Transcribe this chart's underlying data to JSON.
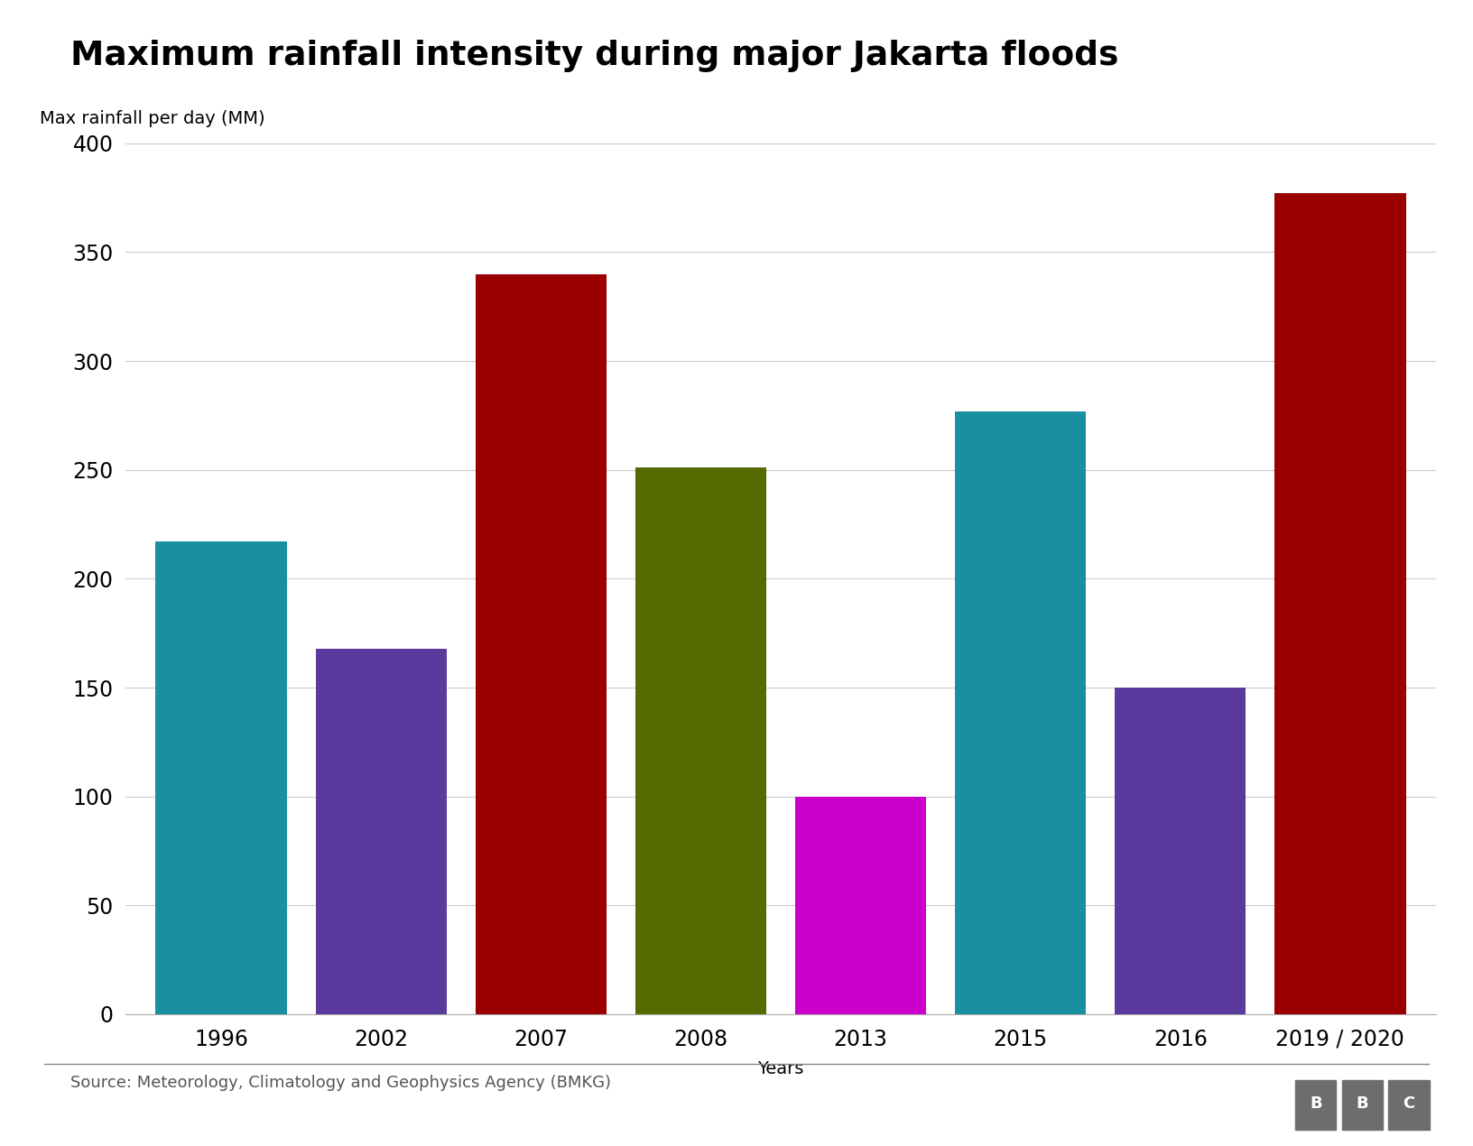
{
  "categories": [
    "1996",
    "2002",
    "2007",
    "2008",
    "2013",
    "2015",
    "2016",
    "2019 / 2020"
  ],
  "values": [
    217,
    168,
    340,
    251,
    100,
    277,
    150,
    377
  ],
  "bar_colors": [
    "#1a8fa0",
    "#5b3a9e",
    "#9b0000",
    "#556b00",
    "#cc00cc",
    "#1a8fa0",
    "#5b3a9e",
    "#9b0000"
  ],
  "title": "Maximum rainfall intensity during major Jakarta floods",
  "ylabel": "Max rainfall per day (MM)",
  "xlabel": "Years",
  "ylim": [
    0,
    400
  ],
  "yticks": [
    0,
    50,
    100,
    150,
    200,
    250,
    300,
    350,
    400
  ],
  "source": "Source: Meteorology, Climatology and Geophysics Agency (BMKG)",
  "title_fontsize": 27,
  "label_fontsize": 14,
  "tick_fontsize": 17,
  "source_fontsize": 13,
  "background_color": "#ffffff",
  "grid_color": "#cccccc",
  "bar_width": 0.82
}
